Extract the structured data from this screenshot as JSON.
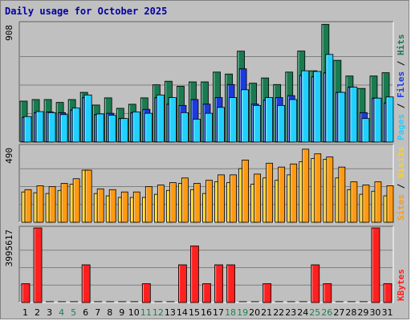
{
  "title": "Daily usage for October 2025",
  "colors": {
    "hits": "#1a7a50",
    "files": "#1a3be0",
    "pages": "#22d0ff",
    "visits": "#ffd020",
    "sites": "#ff9a10",
    "kbytes": "#ff2020",
    "weekend_label": "#208050",
    "weekday_label": "#000000"
  },
  "chart_data": [
    {
      "type": "bar",
      "panel": "hits-files-pages",
      "ymax_label": "908",
      "ylim": [
        0,
        908
      ],
      "grid": true,
      "legend": {
        "parts": [
          "Pages",
          "Files",
          "Hits"
        ],
        "separator": "/",
        "placement": "right-vertical"
      },
      "categories": [
        "1",
        "2",
        "3",
        "4",
        "5",
        "6",
        "7",
        "8",
        "9",
        "10",
        "11",
        "12",
        "13",
        "14",
        "15",
        "16",
        "17",
        "18",
        "19",
        "20",
        "21",
        "22",
        "23",
        "24",
        "25",
        "26",
        "27",
        "28",
        "29",
        "30",
        "31"
      ],
      "series": [
        {
          "name": "Hits",
          "values": [
            313,
            325,
            325,
            303,
            325,
            380,
            283,
            338,
            258,
            289,
            338,
            438,
            465,
            427,
            460,
            460,
            535,
            520,
            695,
            450,
            490,
            440,
            535,
            696,
            545,
            900,
            625,
            505,
            410,
            505,
            530
          ]
        },
        {
          "name": "Files",
          "values": [
            190,
            225,
            230,
            225,
            245,
            340,
            210,
            220,
            180,
            225,
            250,
            340,
            290,
            280,
            325,
            290,
            340,
            440,
            560,
            290,
            320,
            340,
            355,
            510,
            500,
            530,
            380,
            420,
            225,
            336,
            300
          ]
        },
        {
          "name": "Pages",
          "values": [
            195,
            233,
            225,
            210,
            260,
            360,
            215,
            205,
            180,
            230,
            220,
            360,
            340,
            225,
            175,
            220,
            265,
            340,
            400,
            280,
            340,
            280,
            325,
            545,
            540,
            670,
            380,
            420,
            180,
            336,
            345
          ]
        }
      ]
    },
    {
      "type": "bar",
      "panel": "visits-sites",
      "ymax_label": "490",
      "ylim": [
        0,
        490
      ],
      "grid": true,
      "legend": {
        "parts": [
          "Sites",
          "Visits"
        ],
        "separator": "/",
        "placement": "right-vertical"
      },
      "categories": [
        "1",
        "2",
        "3",
        "4",
        "5",
        "6",
        "7",
        "8",
        "9",
        "10",
        "11",
        "12",
        "13",
        "14",
        "15",
        "16",
        "17",
        "18",
        "19",
        "20",
        "21",
        "22",
        "23",
        "24",
        "25",
        "26",
        "27",
        "28",
        "29",
        "30",
        "31"
      ],
      "series": [
        {
          "name": "Visits",
          "values": [
            195,
            190,
            185,
            205,
            245,
            335,
            185,
            170,
            160,
            160,
            160,
            180,
            205,
            250,
            210,
            185,
            260,
            255,
            345,
            245,
            285,
            270,
            305,
            390,
            410,
            405,
            285,
            210,
            180,
            200,
            170
          ]
        },
        {
          "name": "Sites",
          "values": [
            210,
            235,
            230,
            250,
            280,
            335,
            215,
            210,
            195,
            195,
            230,
            240,
            255,
            285,
            250,
            270,
            305,
            305,
            400,
            310,
            380,
            355,
            375,
            470,
            440,
            420,
            355,
            260,
            240,
            260,
            235
          ]
        }
      ]
    },
    {
      "type": "bar",
      "panel": "kbytes",
      "ymax_label": "3995617",
      "ylim": [
        0,
        3995617
      ],
      "grid": true,
      "legend": {
        "parts": [
          "KBytes"
        ],
        "separator": "/",
        "placement": "right-vertical"
      },
      "categories": [
        "1",
        "2",
        "3",
        "4",
        "5",
        "6",
        "7",
        "8",
        "9",
        "10",
        "11",
        "12",
        "13",
        "14",
        "15",
        "16",
        "17",
        "18",
        "19",
        "20",
        "21",
        "22",
        "23",
        "24",
        "25",
        "26",
        "27",
        "28",
        "29",
        "30",
        "31"
      ],
      "weekend_days": [
        4,
        5,
        11,
        12,
        18,
        19,
        25,
        26
      ],
      "series": [
        {
          "name": "KBytes",
          "values": [
            1010000,
            3995617,
            0,
            0,
            0,
            2020000,
            0,
            0,
            0,
            0,
            1010000,
            0,
            0,
            2020000,
            3030000,
            1010000,
            2020000,
            2020000,
            0,
            0,
            1010000,
            0,
            0,
            0,
            2020000,
            1010000,
            0,
            0,
            0,
            3995617,
            1010000
          ]
        }
      ]
    }
  ]
}
